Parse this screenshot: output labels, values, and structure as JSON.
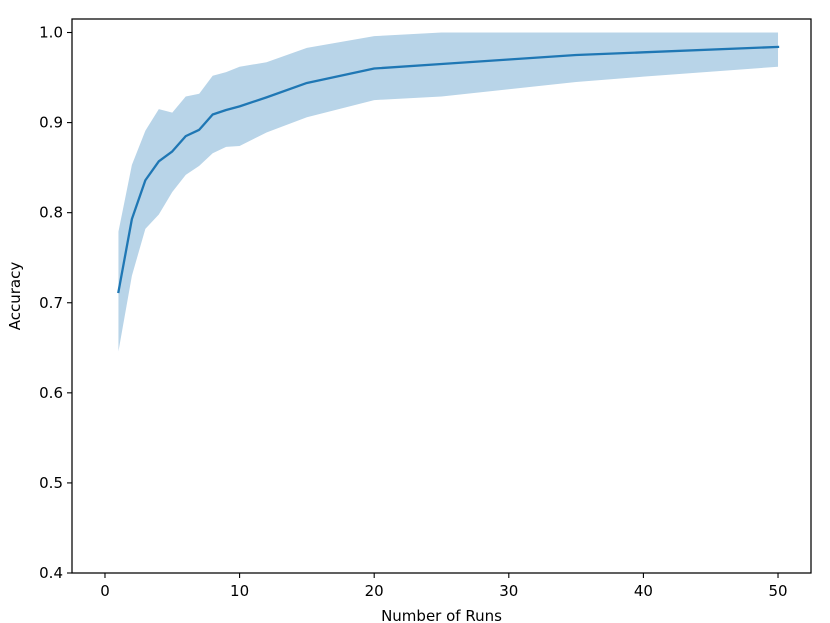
{
  "chart_data": {
    "type": "line",
    "title": "",
    "xlabel": "Number of Runs",
    "ylabel": "Accuracy",
    "xlim": [
      -2.45,
      52.45
    ],
    "ylim": [
      0.4,
      1.015
    ],
    "x_ticks": [
      0,
      10,
      20,
      30,
      40,
      50
    ],
    "y_ticks": [
      0.4,
      0.5,
      0.6,
      0.7,
      0.8,
      0.9,
      1.0
    ],
    "x_tick_labels": [
      "0",
      "10",
      "20",
      "30",
      "40",
      "50"
    ],
    "y_tick_labels": [
      "0.4",
      "0.5",
      "0.6",
      "0.7",
      "0.8",
      "0.9",
      "1.0"
    ],
    "grid": false,
    "legend": false,
    "colors": {
      "line": "#1f77b4",
      "band": "#b8d4e8"
    },
    "series": [
      {
        "x": [
          1,
          2,
          3,
          4,
          5,
          6,
          7,
          8,
          9,
          10,
          12,
          15,
          20,
          25,
          30,
          35,
          40,
          50
        ],
        "values": [
          0.712,
          0.793,
          0.836,
          0.857,
          0.868,
          0.885,
          0.892,
          0.909,
          0.914,
          0.918,
          0.928,
          0.944,
          0.96,
          0.965,
          0.97,
          0.975,
          0.978,
          0.984
        ],
        "lower": [
          0.646,
          0.73,
          0.782,
          0.798,
          0.823,
          0.842,
          0.852,
          0.866,
          0.873,
          0.874,
          0.889,
          0.906,
          0.925,
          0.929,
          0.937,
          0.945,
          0.951,
          0.962
        ],
        "upper": [
          0.779,
          0.853,
          0.891,
          0.915,
          0.911,
          0.929,
          0.932,
          0.952,
          0.956,
          0.962,
          0.967,
          0.983,
          0.996,
          1.0,
          1.0,
          1.0,
          1.0,
          1.0
        ]
      }
    ]
  }
}
